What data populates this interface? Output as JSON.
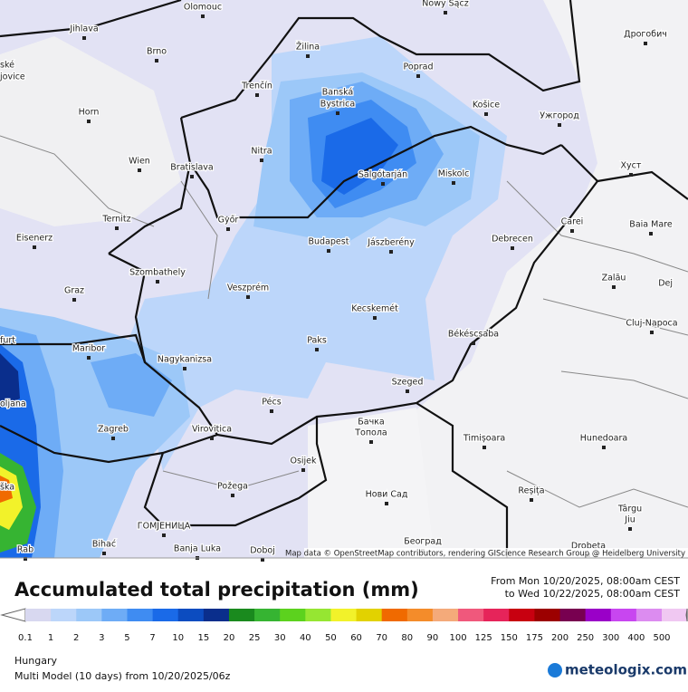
{
  "map": {
    "cities": [
      "Olomouc",
      "Nowy Sącz",
      "Jihlava",
      "Brno",
      "Žilina",
      "Poprad",
      "Дрогобич",
      "ské",
      "jovice",
      "Trenčín",
      "Banská",
      "Bystrica",
      "Košice",
      "Ужгород",
      "Horn",
      "Nitra",
      "Wien",
      "Bratislava",
      "Salgótarján",
      "Miskolc",
      "Хуст",
      "Ternitz",
      "Győr",
      "Carei",
      "Baia Mare",
      "Eisenerz",
      "Budapest",
      "Jászberény",
      "Debrecen",
      "Szombathely",
      "Zalău",
      "Graz",
      "Veszprém",
      "Dej",
      "Kecskemét",
      "Cluj-Napoca",
      "furt",
      "Maribor",
      "Paks",
      "Békéscsaba",
      "Nagykanizsa",
      "oljana",
      "Pécs",
      "Szeged",
      "Zagreb",
      "Virovitica",
      "Бачка",
      "Топола",
      "Timișoara",
      "Hunedoara",
      "Osijek",
      "Požega",
      "Нови Сад",
      "Reșița",
      "ška",
      "Târgu",
      "Jiu",
      "ГОМЈЕНИЦА",
      "Bihać",
      "Banja Luka",
      "Doboj",
      "Београд",
      "Drobeta",
      "Rab"
    ],
    "attribution": "Map data © OpenStreetMap contributors, rendering GIScience Research Group @ Heidelberg University"
  },
  "header": {
    "title": "Accumulated total precipitation (mm)",
    "period_from": "From Mon 10/20/2025, 08:00am CEST",
    "period_to": "to Wed 10/22/2025, 08:00am CEST"
  },
  "legend": {
    "labels": [
      0.1,
      1,
      2,
      3,
      5,
      7,
      10,
      15,
      20,
      25,
      30,
      40,
      50,
      60,
      70,
      80,
      90,
      100,
      125,
      150,
      175,
      200,
      250,
      300,
      400,
      500
    ],
    "colors": [
      "#d8d8f0",
      "#bcd6fa",
      "#9cc8f8",
      "#6eacf6",
      "#3f8cf2",
      "#1a6ae8",
      "#0c4cc0",
      "#0a2e8c",
      "#1a8a1e",
      "#36b432",
      "#5cd21e",
      "#96e632",
      "#f2f22a",
      "#e2d200",
      "#f06a00",
      "#f48c2a",
      "#f4aa7a",
      "#f0587c",
      "#e6245a",
      "#c80010",
      "#9c0000",
      "#780050",
      "#9a00c8",
      "#c846f0",
      "#dc8cf0",
      "#f0c8f2"
    ]
  },
  "footer": {
    "region": "Hungary",
    "model": "Multi Model (10 days) from 10/20/2025/06z",
    "brand": "meteologix.com"
  }
}
